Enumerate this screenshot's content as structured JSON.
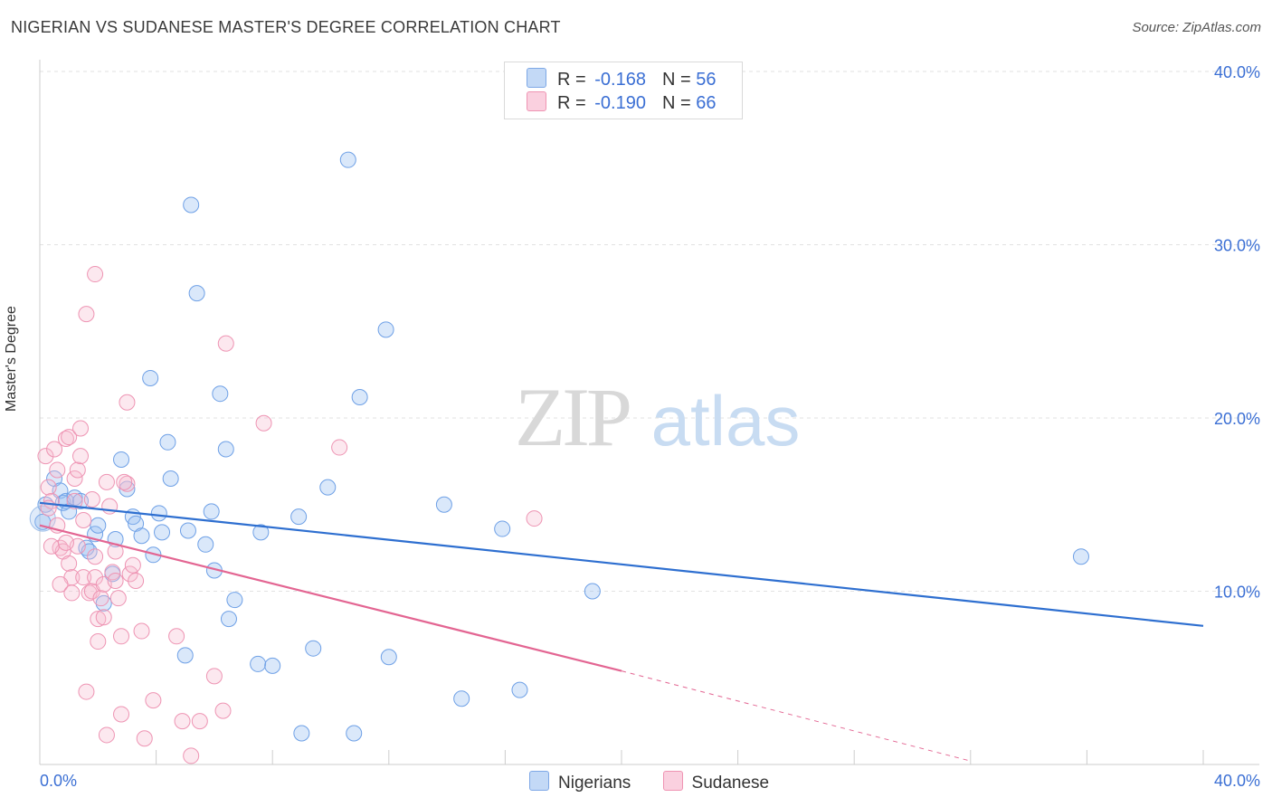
{
  "title": "NIGERIAN VS SUDANESE MASTER'S DEGREE CORRELATION CHART",
  "source": "Source: ZipAtlas.com",
  "watermark": {
    "zip": "ZIP",
    "atlas": "atlas"
  },
  "legend": [
    {
      "r_label": "R =",
      "r_value": "-0.168",
      "n_label": "N =",
      "n_value": "56",
      "color": "#a9c8f2",
      "border": "#7ea8e6"
    },
    {
      "r_label": "R =",
      "r_value": "-0.190",
      "n_label": "N =",
      "n_value": "66",
      "color": "#f7bcd0",
      "border": "#ef94b3"
    }
  ],
  "bottom_legend": [
    {
      "label": "Nigerians",
      "color": "#a9c8f2",
      "border": "#7ea8e6"
    },
    {
      "label": "Sudanese",
      "color": "#f7bcd0",
      "border": "#ef94b3"
    }
  ],
  "chart_data": {
    "type": "scatter",
    "xlabel": "",
    "ylabel": "Master's Degree",
    "xlim": [
      0,
      40
    ],
    "ylim": [
      0,
      40
    ],
    "x_tick_labels": [
      "0.0%",
      "40.0%"
    ],
    "y_ticks": [
      10,
      20,
      30,
      40
    ],
    "y_tick_labels": [
      "10.0%",
      "20.0%",
      "30.0%",
      "40.0%"
    ],
    "grid": true,
    "series": [
      {
        "name": "Nigerians",
        "color": "#6ea0e6",
        "fill": "rgba(150,190,240,0.35)",
        "trend": {
          "x": [
            0,
            40
          ],
          "y": [
            15.1,
            8.0
          ],
          "color": "#2e6fd0",
          "dashed_from": null
        },
        "points": [
          [
            0.2,
            15.0
          ],
          [
            0.5,
            16.5
          ],
          [
            0.7,
            15.8
          ],
          [
            0.8,
            15.1
          ],
          [
            0.9,
            15.2
          ],
          [
            1.0,
            14.6
          ],
          [
            1.2,
            15.4
          ],
          [
            1.4,
            15.2
          ],
          [
            1.6,
            12.5
          ],
          [
            1.7,
            12.3
          ],
          [
            1.9,
            13.3
          ],
          [
            2.0,
            13.8
          ],
          [
            2.2,
            9.3
          ],
          [
            2.5,
            11.0
          ],
          [
            2.6,
            13.0
          ],
          [
            2.8,
            17.6
          ],
          [
            3.0,
            15.9
          ],
          [
            3.2,
            14.3
          ],
          [
            3.3,
            13.9
          ],
          [
            3.5,
            13.2
          ],
          [
            3.8,
            22.3
          ],
          [
            3.9,
            12.1
          ],
          [
            4.1,
            14.5
          ],
          [
            4.2,
            13.4
          ],
          [
            4.4,
            18.6
          ],
          [
            4.5,
            16.5
          ],
          [
            5.0,
            6.3
          ],
          [
            5.1,
            13.5
          ],
          [
            5.2,
            32.3
          ],
          [
            5.4,
            27.2
          ],
          [
            5.7,
            12.7
          ],
          [
            5.9,
            14.6
          ],
          [
            6.0,
            11.2
          ],
          [
            6.2,
            21.4
          ],
          [
            6.4,
            18.2
          ],
          [
            6.5,
            8.4
          ],
          [
            6.7,
            9.5
          ],
          [
            7.5,
            5.8
          ],
          [
            7.6,
            13.4
          ],
          [
            8.0,
            5.7
          ],
          [
            8.9,
            14.3
          ],
          [
            9.0,
            1.8
          ],
          [
            9.4,
            6.7
          ],
          [
            9.9,
            16.0
          ],
          [
            10.6,
            34.9
          ],
          [
            10.8,
            1.8
          ],
          [
            11.0,
            21.2
          ],
          [
            11.9,
            25.1
          ],
          [
            12.0,
            6.2
          ],
          [
            13.9,
            15.0
          ],
          [
            14.5,
            3.8
          ],
          [
            15.9,
            13.6
          ],
          [
            16.5,
            4.3
          ],
          [
            19.0,
            10.0
          ],
          [
            35.8,
            12.0
          ],
          [
            0.1,
            14.0
          ]
        ]
      },
      {
        "name": "Sudanese",
        "color": "#ee94b3",
        "fill": "rgba(247,188,208,0.35)",
        "trend": {
          "x": [
            0,
            20
          ],
          "y": [
            13.8,
            5.4
          ],
          "color": "#e36592",
          "dashed_from": 20,
          "dashed_to": [
            32,
            0.2
          ]
        },
        "points": [
          [
            0.2,
            17.8
          ],
          [
            0.3,
            16.0
          ],
          [
            0.4,
            15.2
          ],
          [
            0.5,
            18.2
          ],
          [
            0.6,
            17.0
          ],
          [
            0.6,
            13.8
          ],
          [
            0.7,
            12.5
          ],
          [
            0.8,
            12.3
          ],
          [
            0.9,
            18.8
          ],
          [
            1.0,
            18.9
          ],
          [
            1.0,
            11.6
          ],
          [
            1.1,
            10.8
          ],
          [
            1.2,
            16.5
          ],
          [
            1.3,
            17.0
          ],
          [
            1.3,
            12.6
          ],
          [
            1.4,
            17.8
          ],
          [
            1.4,
            19.4
          ],
          [
            1.5,
            14.1
          ],
          [
            1.5,
            10.8
          ],
          [
            1.6,
            26.0
          ],
          [
            1.7,
            9.9
          ],
          [
            1.8,
            15.3
          ],
          [
            1.8,
            10.0
          ],
          [
            1.9,
            10.8
          ],
          [
            1.9,
            28.3
          ],
          [
            2.0,
            8.4
          ],
          [
            2.0,
            7.1
          ],
          [
            2.1,
            9.6
          ],
          [
            2.2,
            8.5
          ],
          [
            2.2,
            10.4
          ],
          [
            2.3,
            16.3
          ],
          [
            2.4,
            14.9
          ],
          [
            2.5,
            11.1
          ],
          [
            2.6,
            12.3
          ],
          [
            2.6,
            10.6
          ],
          [
            2.7,
            9.6
          ],
          [
            2.8,
            7.4
          ],
          [
            2.8,
            2.9
          ],
          [
            3.0,
            16.2
          ],
          [
            3.1,
            11.0
          ],
          [
            3.2,
            11.5
          ],
          [
            3.3,
            10.6
          ],
          [
            3.5,
            7.7
          ],
          [
            3.6,
            1.5
          ],
          [
            3.9,
            3.7
          ],
          [
            4.7,
            7.4
          ],
          [
            4.9,
            2.5
          ],
          [
            5.2,
            0.5
          ],
          [
            5.5,
            2.5
          ],
          [
            6.0,
            5.1
          ],
          [
            6.3,
            3.1
          ],
          [
            6.4,
            24.3
          ],
          [
            7.7,
            19.7
          ],
          [
            10.3,
            18.3
          ],
          [
            17.0,
            14.2
          ],
          [
            1.6,
            4.2
          ],
          [
            2.3,
            1.7
          ],
          [
            0.3,
            14.8
          ],
          [
            0.7,
            10.4
          ],
          [
            1.1,
            9.9
          ],
          [
            0.4,
            12.6
          ],
          [
            3.0,
            20.9
          ],
          [
            1.9,
            12.0
          ],
          [
            2.9,
            16.3
          ],
          [
            0.9,
            12.8
          ],
          [
            1.2,
            15.2
          ]
        ]
      }
    ]
  }
}
